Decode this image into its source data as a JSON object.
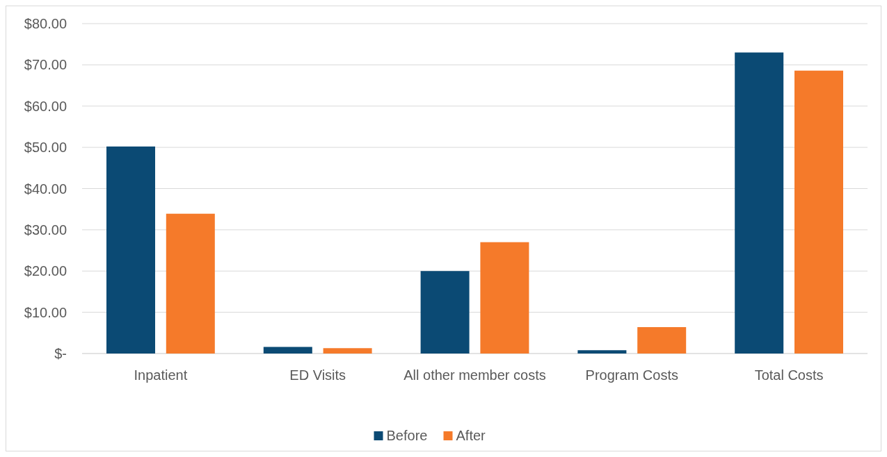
{
  "chart_data": {
    "type": "bar",
    "categories": [
      "Inpatient",
      "ED Visits",
      "All other member costs",
      "Program Costs",
      "Total Costs"
    ],
    "series": [
      {
        "name": "Before",
        "color": "#0b4a74",
        "values": [
          50.2,
          1.6,
          20.0,
          0.8,
          73.0
        ]
      },
      {
        "name": "After",
        "color": "#f57a2a",
        "values": [
          33.9,
          1.3,
          27.0,
          6.4,
          68.6
        ]
      }
    ],
    "ylim": [
      0,
      80
    ],
    "yticks": [
      {
        "value": 0,
        "label": "$-"
      },
      {
        "value": 10,
        "label": "$10.00"
      },
      {
        "value": 20,
        "label": "$20.00"
      },
      {
        "value": 30,
        "label": "$30.00"
      },
      {
        "value": 40,
        "label": "$40.00"
      },
      {
        "value": 50,
        "label": "$50.00"
      },
      {
        "value": 60,
        "label": "$60.00"
      },
      {
        "value": 70,
        "label": "$70.00"
      },
      {
        "value": 80,
        "label": "$80.00"
      }
    ],
    "grid": "y",
    "legend": "bottom"
  }
}
